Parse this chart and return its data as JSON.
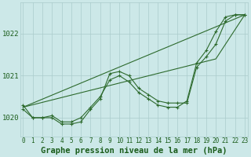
{
  "title": "Graphe pression niveau de la mer (hPa)",
  "hours": [
    0,
    1,
    2,
    3,
    4,
    5,
    6,
    7,
    8,
    9,
    10,
    11,
    12,
    13,
    14,
    15,
    16,
    17,
    18,
    19,
    20,
    21,
    22,
    23
  ],
  "line_measured": [
    1020.3,
    1020.0,
    1020.0,
    1020.0,
    1019.85,
    1019.85,
    1019.9,
    1020.2,
    1020.45,
    1021.05,
    1021.1,
    1021.0,
    1020.7,
    1020.55,
    1020.4,
    1020.35,
    1020.35,
    1020.35,
    1021.2,
    1021.45,
    1021.75,
    1022.3,
    1022.45,
    1022.45
  ],
  "line_smooth": [
    1020.2,
    1020.0,
    1020.0,
    1020.05,
    1019.9,
    1019.9,
    1020.0,
    1020.25,
    1020.5,
    1020.9,
    1021.0,
    1020.85,
    1020.6,
    1020.45,
    1020.3,
    1020.25,
    1020.25,
    1020.4,
    1021.3,
    1021.6,
    1022.05,
    1022.4,
    1022.45,
    1022.45
  ],
  "line_diag1": [
    [
      0,
      1020.25
    ],
    [
      23,
      1022.45
    ]
  ],
  "line_diag2": [
    [
      0,
      1020.25
    ],
    [
      20,
      1021.4
    ],
    [
      23,
      1022.45
    ]
  ],
  "ylim": [
    1019.55,
    1022.75
  ],
  "yticks": [
    1020,
    1021,
    1022
  ],
  "xlim": [
    -0.3,
    23.3
  ],
  "background_color": "#cce8e8",
  "grid_color": "#aacccc",
  "line_color": "#2d6a2d",
  "text_color": "#1a5c1a",
  "title_fontsize": 7.5,
  "tick_fontsize": 5.5,
  "ytick_fontsize": 6.5
}
